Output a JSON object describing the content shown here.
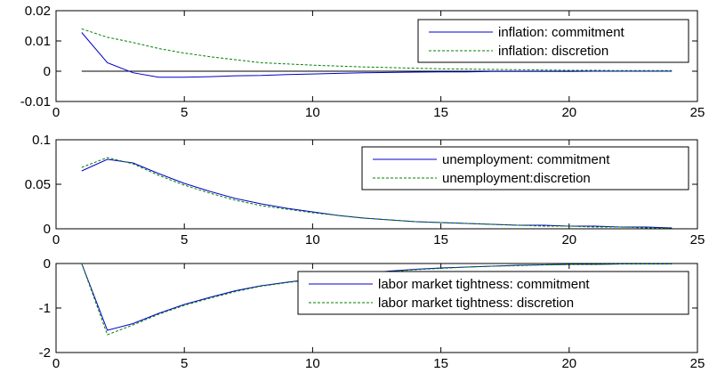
{
  "chart_data": [
    {
      "type": "line",
      "xlim": [
        0,
        25
      ],
      "ylim": [
        -0.01,
        0.02
      ],
      "xticks": [
        0,
        5,
        10,
        15,
        20,
        25
      ],
      "yticks": [
        -0.01,
        0,
        0.01,
        0.02
      ],
      "xtick_labels": [
        "0",
        "5",
        "10",
        "15",
        "20",
        "25"
      ],
      "ytick_labels": [
        "-0.01",
        "0",
        "0.01",
        "0.02"
      ],
      "hline": 0,
      "legend_position": "top-right",
      "x": [
        1,
        2,
        3,
        4,
        5,
        6,
        7,
        8,
        9,
        10,
        11,
        12,
        13,
        14,
        15,
        16,
        17,
        18,
        19,
        20,
        21,
        22,
        23,
        24
      ],
      "series": [
        {
          "name": "inflation: commitment",
          "color": "#0000cc",
          "style": "solid",
          "values": [
            0.0128,
            0.0028,
            -0.0005,
            -0.002,
            -0.002,
            -0.0018,
            -0.0015,
            -0.0014,
            -0.0011,
            -0.0009,
            -0.0007,
            -0.0005,
            -0.0004,
            -0.0003,
            -0.0002,
            -0.0002,
            -0.0001,
            -0.0001,
            -0.0001,
            -0.0001,
            0,
            0,
            0,
            0
          ]
        },
        {
          "name": "inflation: discretion",
          "color": "#008000",
          "style": "dashed",
          "values": [
            0.014,
            0.0112,
            0.0095,
            0.0075,
            0.006,
            0.0048,
            0.0038,
            0.0028,
            0.0024,
            0.002,
            0.0017,
            0.0014,
            0.0012,
            0.001,
            0.0008,
            0.0007,
            0.0006,
            0.0005,
            0.0004,
            0.0003,
            0.0003,
            0.0002,
            0.0002,
            0.0002
          ]
        }
      ]
    },
    {
      "type": "line",
      "xlim": [
        0,
        25
      ],
      "ylim": [
        0,
        0.1
      ],
      "xticks": [
        0,
        5,
        10,
        15,
        20,
        25
      ],
      "yticks": [
        0,
        0.05,
        0.1
      ],
      "xtick_labels": [
        "0",
        "5",
        "10",
        "15",
        "20",
        "25"
      ],
      "ytick_labels": [
        "0",
        "0.05",
        "0.1"
      ],
      "legend_position": "top-right",
      "x": [
        1,
        2,
        3,
        4,
        5,
        6,
        7,
        8,
        9,
        10,
        11,
        12,
        13,
        14,
        15,
        16,
        17,
        18,
        19,
        20,
        21,
        22,
        23,
        24
      ],
      "series": [
        {
          "name": "unemployment: commitment",
          "color": "#0000cc",
          "style": "solid",
          "values": [
            0.065,
            0.078,
            0.074,
            0.062,
            0.051,
            0.042,
            0.034,
            0.028,
            0.023,
            0.019,
            0.015,
            0.012,
            0.01,
            0.008,
            0.007,
            0.006,
            0.005,
            0.004,
            0.004,
            0.003,
            0.003,
            0.002,
            0.002,
            0.001
          ]
        },
        {
          "name": "unemployment:discretion",
          "color": "#008000",
          "style": "dashed",
          "values": [
            0.069,
            0.08,
            0.073,
            0.06,
            0.049,
            0.04,
            0.032,
            0.026,
            0.022,
            0.018,
            0.015,
            0.012,
            0.01,
            0.008,
            0.007,
            0.006,
            0.005,
            0.004,
            0.003,
            0.003,
            0.002,
            0.002,
            0.001,
            0.001
          ]
        }
      ]
    },
    {
      "type": "line",
      "xlim": [
        0,
        25
      ],
      "ylim": [
        -2,
        0
      ],
      "xticks": [
        0,
        5,
        10,
        15,
        20,
        25
      ],
      "yticks": [
        -2,
        -1,
        0
      ],
      "xtick_labels": [
        "0",
        "5",
        "10",
        "15",
        "20",
        "25"
      ],
      "ytick_labels": [
        "-2",
        "-1",
        "0"
      ],
      "legend_position": "top-right",
      "x": [
        1,
        2,
        3,
        4,
        5,
        6,
        7,
        8,
        9,
        10,
        11,
        12,
        13,
        14,
        15,
        16,
        17,
        18,
        19,
        20,
        21,
        22,
        23,
        24
      ],
      "series": [
        {
          "name": "labor market tightness: commitment",
          "color": "#0000cc",
          "style": "solid",
          "values": [
            0,
            -1.5,
            -1.35,
            -1.12,
            -0.92,
            -0.76,
            -0.61,
            -0.5,
            -0.42,
            -0.35,
            -0.28,
            -0.22,
            -0.17,
            -0.13,
            -0.1,
            -0.08,
            -0.06,
            -0.04,
            -0.03,
            -0.02,
            -0.02,
            -0.01,
            -0.01,
            -0.01
          ]
        },
        {
          "name": "labor market tightness: discretion",
          "color": "#008000",
          "style": "dashed",
          "values": [
            0,
            -1.6,
            -1.38,
            -1.14,
            -0.94,
            -0.78,
            -0.63,
            -0.51,
            -0.43,
            -0.36,
            -0.29,
            -0.23,
            -0.18,
            -0.14,
            -0.11,
            -0.08,
            -0.06,
            -0.05,
            -0.03,
            -0.02,
            -0.02,
            -0.01,
            -0.01,
            -0.01
          ]
        }
      ]
    }
  ]
}
